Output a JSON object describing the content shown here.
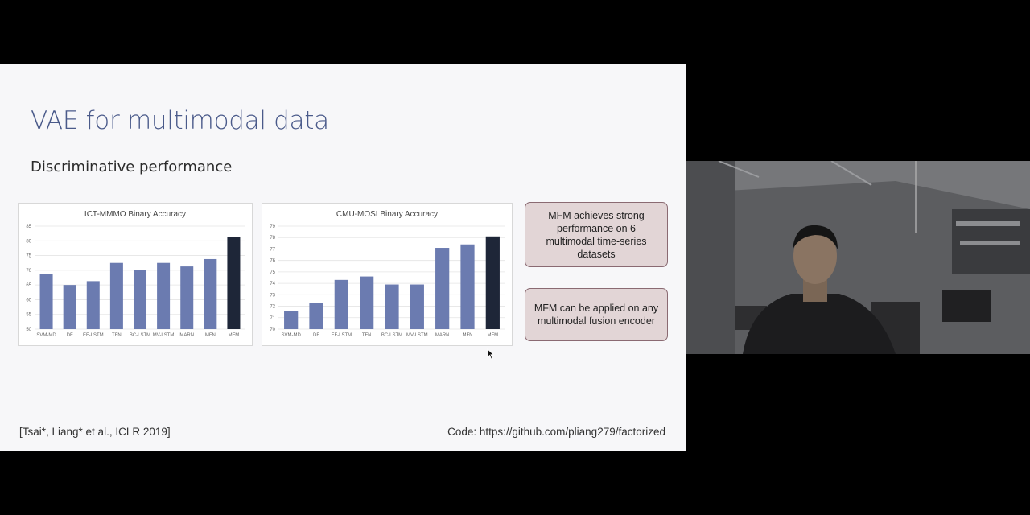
{
  "slide": {
    "title": "VAE for multimodal data",
    "subtitle": "Discriminative performance",
    "info_boxes": [
      "MFM achieves strong performance on 6 multimodal time-series datasets",
      "MFM can be applied on any multimodal fusion encoder"
    ],
    "citation": "[Tsai*, Liang* et al., ICLR 2019]",
    "code_link": "Code: https://github.com/pliang279/factorized"
  },
  "colors": {
    "bar": "#6b7bb0",
    "highlight_bar": "#1e2638",
    "info_box_bg": "#e2d5d6",
    "title": "#4a5a8a"
  },
  "chart_data": [
    {
      "type": "bar",
      "title": "ICT-MMMO Binary Accuracy",
      "categories": [
        "SVM-MD",
        "DF",
        "EF-LSTM",
        "TFN",
        "BC-LSTM",
        "MV-LSTM",
        "MARN",
        "MFN",
        "MFM"
      ],
      "values": [
        68.8,
        65.0,
        66.3,
        72.5,
        70.0,
        72.5,
        71.3,
        73.8,
        81.3
      ],
      "ylim": [
        50,
        85
      ],
      "yticks": [
        50,
        55,
        60,
        65,
        70,
        75,
        80,
        85
      ],
      "highlight": "MFM"
    },
    {
      "type": "bar",
      "title": "CMU-MOSI Binary Accuracy",
      "categories": [
        "SVM-MD",
        "DF",
        "EF-LSTM",
        "TFN",
        "BC-LSTM",
        "MV-LSTM",
        "MARN",
        "MFN",
        "MFM"
      ],
      "values": [
        71.6,
        72.3,
        74.3,
        74.6,
        73.9,
        73.9,
        77.1,
        77.4,
        78.1
      ],
      "ylim": [
        70,
        79
      ],
      "yticks": [
        70,
        71,
        72,
        73,
        74,
        75,
        76,
        77,
        78,
        79
      ],
      "highlight": "MFM"
    }
  ]
}
